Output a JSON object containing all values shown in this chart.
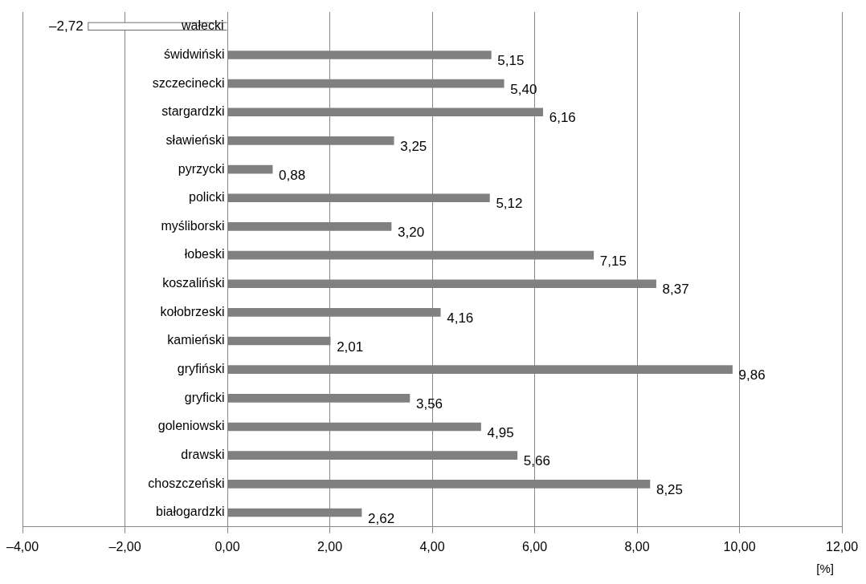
{
  "chart_data": {
    "type": "bar",
    "orientation": "horizontal",
    "categories": [
      "wałecki",
      "świdwiński",
      "szczecinecki",
      "stargardzki",
      "sławieński",
      "pyrzycki",
      "policki",
      "myśliborski",
      "łobeski",
      "koszaliński",
      "kołobrzeski",
      "kamieński",
      "gryfiński",
      "gryficki",
      "goleniowski",
      "drawski",
      "choszczeński",
      "białogardzki"
    ],
    "values": [
      -2.72,
      5.15,
      5.4,
      6.16,
      3.25,
      0.88,
      5.12,
      3.2,
      7.15,
      8.37,
      4.16,
      2.01,
      9.86,
      3.56,
      4.95,
      5.66,
      8.25,
      2.62
    ],
    "value_labels": [
      "–2,72",
      "5,15",
      "5,40",
      "6,16",
      "3,25",
      "0,88",
      "5,12",
      "3,20",
      "7,15",
      "8,37",
      "4,16",
      "2,01",
      "9,86",
      "3,56",
      "4,95",
      "5,66",
      "8,25",
      "2,62"
    ],
    "colors": [
      "#ffffff",
      "#808080",
      "#808080",
      "#808080",
      "#808080",
      "#808080",
      "#808080",
      "#808080",
      "#808080",
      "#808080",
      "#808080",
      "#808080",
      "#808080",
      "#808080",
      "#808080",
      "#808080",
      "#808080",
      "#808080"
    ],
    "xlim": [
      -4,
      12
    ],
    "xticks": [
      {
        "value": -4,
        "label": "–4,00"
      },
      {
        "value": -2,
        "label": "–2,00"
      },
      {
        "value": 0,
        "label": "0,00"
      },
      {
        "value": 2,
        "label": "2,00"
      },
      {
        "value": 4,
        "label": "4,00"
      },
      {
        "value": 6,
        "label": "6,00"
      },
      {
        "value": 8,
        "label": "8,00"
      },
      {
        "value": 10,
        "label": "10,00"
      },
      {
        "value": 12,
        "label": "12,00"
      }
    ],
    "xlabel": "[%]",
    "grid": "x",
    "legend": false
  }
}
